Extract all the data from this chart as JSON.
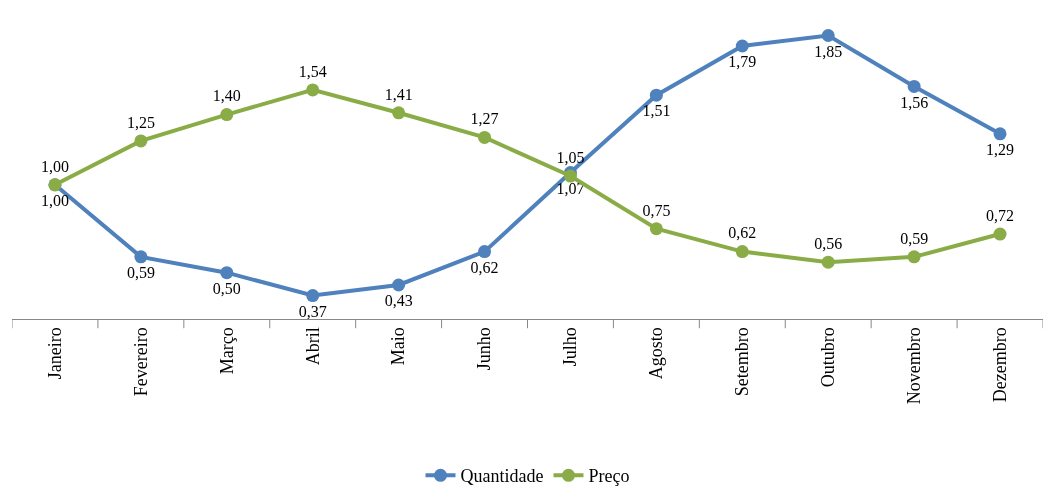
{
  "chart_data": {
    "type": "line",
    "categories": [
      "Janeiro",
      "Fevereiro",
      "Março",
      "Abril",
      "Maio",
      "Junho",
      "Julho",
      "Agosto",
      "Setembro",
      "Outubro",
      "Novembro",
      "Dezembro"
    ],
    "series": [
      {
        "name": "Quantidade",
        "color": "#4f81bd",
        "values": [
          1.0,
          0.59,
          0.5,
          0.37,
          0.43,
          0.62,
          1.07,
          1.51,
          1.79,
          1.85,
          1.56,
          1.29
        ],
        "value_labels": [
          "1,00",
          "0,59",
          "0,50",
          "0,37",
          "0,43",
          "0,62",
          "1,07",
          "1,51",
          "1,79",
          "1,85",
          "1,56",
          "1,29"
        ]
      },
      {
        "name": "Preço",
        "color": "#8aac46",
        "values": [
          1.0,
          1.25,
          1.4,
          1.54,
          1.41,
          1.27,
          1.05,
          0.75,
          0.62,
          0.56,
          0.59,
          0.72
        ],
        "value_labels": [
          "1,00",
          "1,25",
          "1,40",
          "1,54",
          "1,41",
          "1,27",
          "1,05",
          "0,75",
          "0,62",
          "0,56",
          "0,59",
          "0,72"
        ]
      }
    ],
    "marker": "circle",
    "line_style": "solid",
    "grid": false,
    "legend": "bottom"
  }
}
